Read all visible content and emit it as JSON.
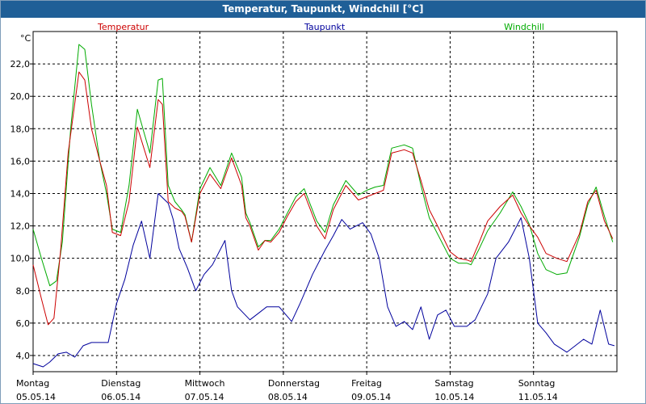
{
  "window": {
    "title": "Temperatur, Taupunkt, Windchill [°C]"
  },
  "colors": {
    "temperatur": "#cc0000",
    "taupunkt": "#00009c",
    "windchill": "#00aa00",
    "title_bar": "#1f5f97",
    "grid": "#000000"
  },
  "chart_data": {
    "type": "line",
    "title": "Temperatur, Taupunkt, Windchill [°C]",
    "ylabel": "°C",
    "ylim": [
      3,
      24
    ],
    "yticks": [
      "4,0",
      "6,0",
      "8,0",
      "10,0",
      "12,0",
      "14,0",
      "16,0",
      "18,0",
      "20,0",
      "22,0"
    ],
    "ytick_values": [
      4,
      6,
      8,
      10,
      12,
      14,
      16,
      18,
      20,
      22
    ],
    "xlim": [
      0,
      7
    ],
    "x_categories": [
      {
        "day": "Montag",
        "date": "05.05.14"
      },
      {
        "day": "Dienstag",
        "date": "06.05.14"
      },
      {
        "day": "Mittwoch",
        "date": "07.05.14"
      },
      {
        "day": "Donnerstag",
        "date": "08.05.14"
      },
      {
        "day": "Freitag",
        "date": "09.05.14"
      },
      {
        "day": "Samstag",
        "date": "10.05.14"
      },
      {
        "day": "Sonntag",
        "date": "11.05.14"
      }
    ],
    "grid": true,
    "legend_position": "top",
    "series": [
      {
        "name": "Temperatur",
        "color": "#cc0000",
        "x": [
          0,
          0.1,
          0.18,
          0.25,
          0.33,
          0.42,
          0.55,
          0.62,
          0.7,
          0.8,
          0.88,
          0.95,
          1.05,
          1.15,
          1.25,
          1.4,
          1.5,
          1.55,
          1.62,
          1.7,
          1.78,
          1.82,
          1.9,
          2.0,
          2.12,
          2.25,
          2.38,
          2.5,
          2.55,
          2.6,
          2.7,
          2.78,
          2.85,
          2.95,
          3.05,
          3.15,
          3.25,
          3.4,
          3.5,
          3.6,
          3.75,
          3.9,
          4.0,
          4.1,
          4.2,
          4.3,
          4.45,
          4.55,
          4.65,
          4.75,
          4.85,
          5.0,
          5.1,
          5.2,
          5.25,
          5.35,
          5.45,
          5.6,
          5.75,
          5.85,
          5.95,
          6.05,
          6.15,
          6.28,
          6.4,
          6.55,
          6.65,
          6.75,
          6.85,
          6.95
        ],
        "values": [
          9.6,
          7.5,
          5.9,
          6.3,
          10.5,
          16.5,
          21.5,
          21.0,
          18.0,
          16.0,
          14.5,
          11.6,
          11.4,
          13.5,
          18.1,
          15.6,
          19.8,
          19.5,
          13.5,
          13.1,
          12.9,
          12.6,
          11.0,
          14.0,
          15.2,
          14.3,
          16.2,
          14.5,
          12.5,
          12.0,
          10.5,
          11.1,
          11.0,
          11.6,
          12.6,
          13.5,
          14.0,
          12.0,
          11.2,
          13.0,
          14.5,
          13.6,
          13.8,
          14.0,
          14.2,
          16.5,
          16.7,
          16.5,
          14.8,
          13.0,
          12.0,
          10.4,
          10.0,
          9.9,
          9.8,
          11.0,
          12.3,
          13.2,
          13.9,
          12.8,
          12.0,
          11.3,
          10.3,
          10.0,
          9.8,
          11.5,
          13.5,
          14.2,
          12.3,
          11.2
        ]
      },
      {
        "name": "Taupunkt",
        "color": "#00009c",
        "x": [
          0,
          0.12,
          0.2,
          0.3,
          0.4,
          0.5,
          0.6,
          0.7,
          0.8,
          0.9,
          1.0,
          1.1,
          1.2,
          1.3,
          1.4,
          1.5,
          1.62,
          1.68,
          1.75,
          1.85,
          1.95,
          2.05,
          2.15,
          2.3,
          2.38,
          2.45,
          2.6,
          2.7,
          2.8,
          2.95,
          3.1,
          3.2,
          3.35,
          3.5,
          3.6,
          3.7,
          3.8,
          3.95,
          4.05,
          4.15,
          4.25,
          4.35,
          4.45,
          4.55,
          4.65,
          4.75,
          4.85,
          4.95,
          5.05,
          5.2,
          5.3,
          5.45,
          5.55,
          5.7,
          5.85,
          5.95,
          6.05,
          6.15,
          6.25,
          6.4,
          6.5,
          6.6,
          6.7,
          6.8,
          6.9,
          6.97
        ],
        "values": [
          3.5,
          3.3,
          3.6,
          4.1,
          4.2,
          3.9,
          4.6,
          4.8,
          4.8,
          4.8,
          7.2,
          8.7,
          10.8,
          12.3,
          10.0,
          14.0,
          13.4,
          12.4,
          10.6,
          9.4,
          8.0,
          9.0,
          9.6,
          11.1,
          8.0,
          7.0,
          6.2,
          6.6,
          7.0,
          7.0,
          6.1,
          7.2,
          9.0,
          10.5,
          11.4,
          12.4,
          11.8,
          12.2,
          11.5,
          10.0,
          7.0,
          5.8,
          6.1,
          5.6,
          7.0,
          5.0,
          6.5,
          6.8,
          5.8,
          5.8,
          6.2,
          7.8,
          10.0,
          11.0,
          12.5,
          10.0,
          6.0,
          5.4,
          4.7,
          4.2,
          4.6,
          5.0,
          4.7,
          6.8,
          4.7,
          4.6
        ]
      },
      {
        "name": "Windchill",
        "color": "#00aa00",
        "x": [
          0,
          0.1,
          0.2,
          0.28,
          0.35,
          0.45,
          0.55,
          0.62,
          0.7,
          0.8,
          0.88,
          0.95,
          1.05,
          1.15,
          1.25,
          1.4,
          1.5,
          1.55,
          1.62,
          1.7,
          1.78,
          1.82,
          1.9,
          2.0,
          2.12,
          2.25,
          2.38,
          2.5,
          2.55,
          2.6,
          2.7,
          2.78,
          2.85,
          2.95,
          3.05,
          3.15,
          3.25,
          3.4,
          3.5,
          3.6,
          3.75,
          3.9,
          4.0,
          4.1,
          4.2,
          4.3,
          4.45,
          4.55,
          4.65,
          4.75,
          4.85,
          5.0,
          5.1,
          5.2,
          5.25,
          5.35,
          5.45,
          5.6,
          5.75,
          5.85,
          5.95,
          6.05,
          6.15,
          6.28,
          6.4,
          6.55,
          6.65,
          6.75,
          6.85,
          6.95
        ],
        "values": [
          11.8,
          10.0,
          8.3,
          8.6,
          11.0,
          18.0,
          23.2,
          22.9,
          19.5,
          16.0,
          14.0,
          11.8,
          11.6,
          14.5,
          19.2,
          16.5,
          21.0,
          21.1,
          14.5,
          13.5,
          13.0,
          12.7,
          11.0,
          14.3,
          15.6,
          14.5,
          16.5,
          15.0,
          12.8,
          12.2,
          10.7,
          11.1,
          11.1,
          11.8,
          12.8,
          13.8,
          14.3,
          12.3,
          11.6,
          13.3,
          14.8,
          13.9,
          14.2,
          14.4,
          14.5,
          16.8,
          17.0,
          16.8,
          14.5,
          12.5,
          11.5,
          10.0,
          9.7,
          9.7,
          9.6,
          10.6,
          11.7,
          12.8,
          14.1,
          13.2,
          12.1,
          10.3,
          9.3,
          9.0,
          9.1,
          11.3,
          13.3,
          14.4,
          12.6,
          11.0
        ]
      }
    ]
  }
}
